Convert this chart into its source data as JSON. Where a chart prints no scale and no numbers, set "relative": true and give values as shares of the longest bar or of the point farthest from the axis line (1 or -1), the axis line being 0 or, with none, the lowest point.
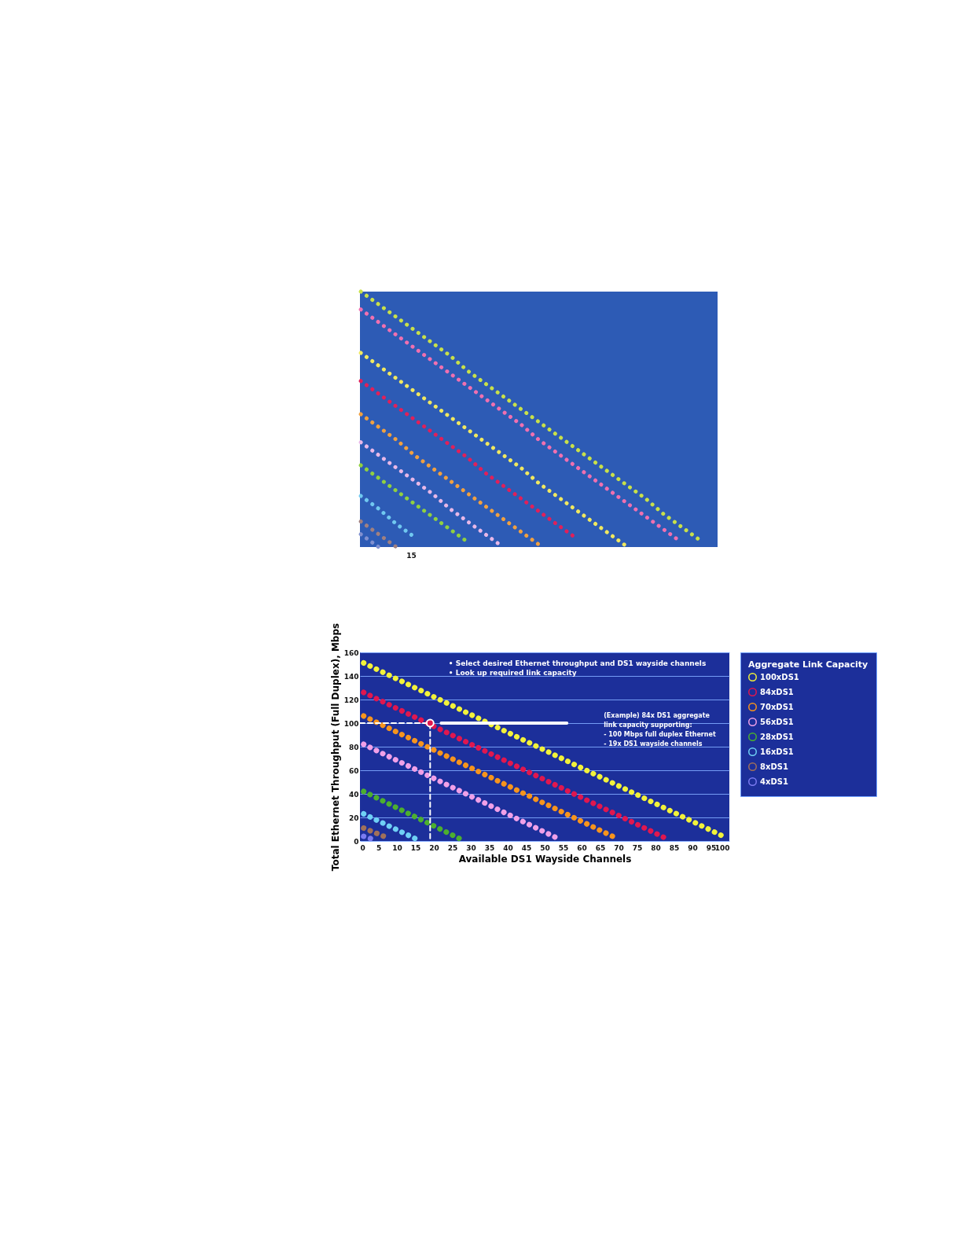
{
  "chart_data": [
    {
      "type": "line",
      "relative": true,
      "line_style": "dotted",
      "legend": false,
      "categories": [
        null,
        null,
        null,
        null,
        null,
        null,
        null,
        null,
        null,
        null,
        null,
        null,
        null,
        null,
        null,
        null,
        null,
        null,
        null,
        null,
        null
      ],
      "annotations": [
        "15"
      ],
      "series": [
        {
          "color": "#c8e04a",
          "values": [
            1.0,
            0.95,
            0.9,
            0.85,
            0.8,
            0.75,
            0.69,
            0.64,
            0.59,
            0.54,
            0.49,
            0.44,
            0.39,
            0.34,
            0.29,
            0.24,
            0.19,
            0.13,
            0.08,
            0.03,
            null
          ]
        },
        {
          "color": "#f070b0",
          "values": [
            0.93,
            0.88,
            0.83,
            0.78,
            0.73,
            0.68,
            0.63,
            0.58,
            0.53,
            0.48,
            0.42,
            0.37,
            0.32,
            0.27,
            0.22,
            0.17,
            0.12,
            0.07,
            0.02,
            null,
            null
          ]
        },
        {
          "color": "#f0e860",
          "values": [
            0.76,
            0.71,
            0.66,
            0.61,
            0.56,
            0.51,
            0.46,
            0.41,
            0.36,
            0.31,
            0.25,
            0.2,
            0.15,
            0.1,
            0.05,
            0.0,
            null,
            null,
            null,
            null,
            null
          ]
        },
        {
          "color": "#e0205a",
          "values": [
            0.65,
            0.6,
            0.55,
            0.5,
            0.45,
            0.4,
            0.35,
            0.29,
            0.24,
            0.19,
            0.14,
            0.09,
            0.04,
            null,
            null,
            null,
            null,
            null,
            null,
            null,
            null
          ]
        },
        {
          "color": "#f0a040",
          "values": [
            0.52,
            0.47,
            0.42,
            0.36,
            0.31,
            0.26,
            0.21,
            0.16,
            0.11,
            0.06,
            0.01,
            null,
            null,
            null,
            null,
            null,
            null,
            null,
            null,
            null,
            null
          ]
        },
        {
          "color": "#e8b8e8",
          "values": [
            0.41,
            0.36,
            0.31,
            0.26,
            0.21,
            0.15,
            0.1,
            0.05,
            0.0,
            null,
            null,
            null,
            null,
            null,
            null,
            null,
            null,
            null,
            null,
            null,
            null
          ]
        },
        {
          "color": "#90d040",
          "values": [
            0.32,
            0.27,
            0.22,
            0.17,
            0.12,
            0.07,
            0.02,
            null,
            null,
            null,
            null,
            null,
            null,
            null,
            null,
            null,
            null,
            null,
            null,
            null,
            null
          ]
        },
        {
          "color": "#70c8f0",
          "values": [
            0.2,
            0.15,
            0.09,
            0.04,
            null,
            null,
            null,
            null,
            null,
            null,
            null,
            null,
            null,
            null,
            null,
            null,
            null,
            null,
            null,
            null,
            null
          ]
        },
        {
          "color": "#a08080",
          "values": [
            0.1,
            0.05,
            0.0,
            null,
            null,
            null,
            null,
            null,
            null,
            null,
            null,
            null,
            null,
            null,
            null,
            null,
            null,
            null,
            null,
            null,
            null
          ]
        },
        {
          "color": "#8090d0",
          "values": [
            0.05,
            0.0,
            null,
            null,
            null,
            null,
            null,
            null,
            null,
            null,
            null,
            null,
            null,
            null,
            null,
            null,
            null,
            null,
            null,
            null,
            null
          ]
        }
      ]
    },
    {
      "type": "line",
      "line_style": "dotted",
      "xlabel": "Available DS1 Wayside Channels",
      "ylabel": "Total Ethernet Throughput (Full Duplex), Mbps",
      "legend_title": "Aggregate Link Capacity",
      "legend": "right",
      "grid": "y",
      "xlim": [
        0,
        100
      ],
      "xticks": [
        0,
        5,
        10,
        15,
        20,
        25,
        30,
        35,
        40,
        45,
        50,
        55,
        60,
        65,
        70,
        75,
        80,
        85,
        90,
        95,
        100
      ],
      "ylim": [
        0,
        160
      ],
      "yticks": [
        0,
        20,
        40,
        60,
        80,
        100,
        120,
        140,
        160
      ],
      "annotations": [
        "• Select desired Ethernet throughput and DS1 wayside channels\n• Look up required link capacity",
        "(Example) 84x DS1 aggregate\nlink capacity supporting:\n- 100 Mbps full duplex Ethernet\n- 19x DS1 wayside channels"
      ],
      "series": [
        {
          "name": "100xDS1",
          "color": "#f2f23a",
          "x": [
            1,
            99
          ],
          "values": [
            151,
            3
          ]
        },
        {
          "name": "84xDS1",
          "color": "#e0174f",
          "x": [
            1,
            83
          ],
          "values": [
            126,
            2
          ]
        },
        {
          "name": "70xDS1",
          "color": "#f7941d",
          "x": [
            1,
            69
          ],
          "values": [
            106,
            3
          ]
        },
        {
          "name": "56xDS1",
          "color": "#f0a0e8",
          "x": [
            1,
            53
          ],
          "values": [
            82,
            3
          ]
        },
        {
          "name": "28xDS1",
          "color": "#4caf2f",
          "x": [
            1,
            27
          ],
          "values": [
            42,
            2
          ]
        },
        {
          "name": "16xDS1",
          "color": "#6fd0f5",
          "x": [
            1,
            15
          ],
          "values": [
            23,
            2
          ]
        },
        {
          "name": "8xDS1",
          "color": "#a0705a",
          "x": [
            1,
            8
          ],
          "values": [
            11,
            2
          ]
        },
        {
          "name": "4xDS1",
          "color": "#7b7bf0",
          "x": [
            1,
            3
          ],
          "values": [
            4,
            2
          ]
        },
        {
          "type": "line",
          "line_style": "dashed",
          "color": "#ffffff",
          "x": [
            0,
            19,
            19
          ],
          "values": [
            100,
            100,
            0
          ]
        },
        {
          "type": "line",
          "line_style": "solid",
          "color": "#ffffff",
          "x": [
            22,
            56
          ],
          "values": [
            100,
            100
          ]
        },
        {
          "type": "scatter",
          "marker": "circle",
          "color": "#e0174f",
          "x": [
            19
          ],
          "values": [
            100
          ]
        }
      ]
    }
  ]
}
